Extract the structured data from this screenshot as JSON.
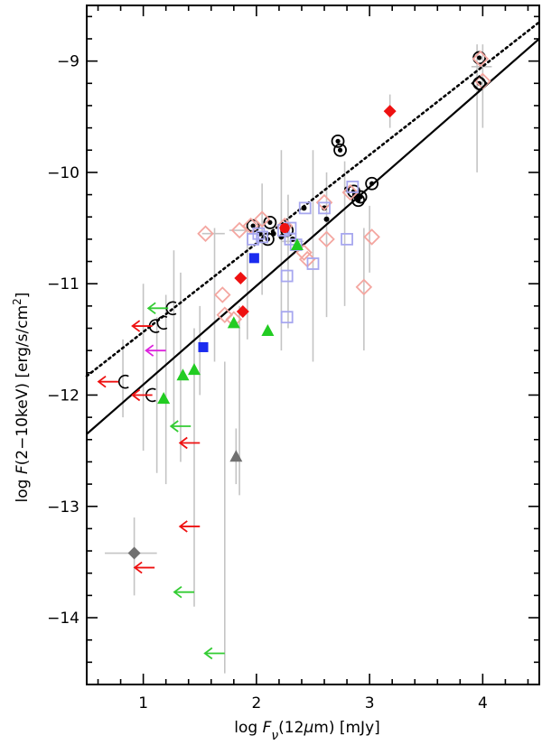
{
  "chart_data": {
    "type": "scatter",
    "xlabel": "log F_ν(12μm) [mJy]",
    "ylabel": "log F(2−10keV) [erg/s/cm²]",
    "xlabel_parts": {
      "prefix": "log ",
      "F": "F",
      "nu": "ν",
      "mid": "(12",
      "mu": "μ",
      "end": "m)  [mJy]"
    },
    "ylabel_parts": {
      "prefix": "log ",
      "F": "F",
      "mid": "(2−10keV)  [erg/s/cm",
      "sup": "2",
      "end": "]"
    },
    "xlim": [
      0.5,
      4.5
    ],
    "ylim": [
      -14.6,
      -8.5
    ],
    "x_ticks": [
      1,
      2,
      3,
      4
    ],
    "x_tick_labels": [
      "1",
      "2",
      "3",
      "4"
    ],
    "y_ticks": [
      -9,
      -10,
      -11,
      -12,
      -13,
      -14
    ],
    "y_tick_labels": [
      "−9",
      "−10",
      "−11",
      "−12",
      "−13",
      "−14"
    ],
    "fits": [
      {
        "name": "solid fit",
        "style": "solid",
        "points": [
          [
            0.5,
            -12.35
          ],
          [
            4.5,
            -8.8
          ]
        ]
      },
      {
        "name": "dotted fit",
        "style": "dotted",
        "points": [
          [
            0.5,
            -11.83
          ],
          [
            4.5,
            -8.65
          ]
        ]
      }
    ],
    "error_bars": [
      {
        "x": 1.0,
        "ylo": -12.5,
        "yhi": -11.0
      },
      {
        "x": 0.82,
        "ylo": -12.2,
        "yhi": -11.5
      },
      {
        "x": 1.12,
        "ylo": -12.7,
        "yhi": -11.3
      },
      {
        "x": 1.2,
        "ylo": -12.8,
        "yhi": -11.1
      },
      {
        "x": 1.27,
        "ylo": -12.3,
        "yhi": -10.7
      },
      {
        "x": 1.33,
        "ylo": -12.6,
        "yhi": -10.9
      },
      {
        "x": 1.45,
        "ylo": -13.9,
        "yhi": -11.4
      },
      {
        "x": 1.5,
        "ylo": -12.0,
        "yhi": -11.2
      },
      {
        "x": 1.63,
        "ylo": -11.7,
        "yhi": -10.5
      },
      {
        "x": 1.72,
        "ylo": -14.5,
        "yhi": -11.7
      },
      {
        "x": 1.85,
        "ylo": -12.9,
        "yhi": -11.2
      },
      {
        "x": 1.92,
        "ylo": -11.5,
        "yhi": -10.5
      },
      {
        "x": 2.05,
        "ylo": -11.1,
        "yhi": -10.1
      },
      {
        "x": 2.22,
        "ylo": -11.6,
        "yhi": -9.8
      },
      {
        "x": 2.28,
        "ylo": -11.4,
        "yhi": -10.2
      },
      {
        "x": 2.5,
        "ylo": -11.7,
        "yhi": -9.8
      },
      {
        "x": 2.62,
        "ylo": -11.3,
        "yhi": -10.0
      },
      {
        "x": 2.78,
        "ylo": -11.2,
        "yhi": -9.9
      },
      {
        "x": 2.95,
        "ylo": -11.6,
        "yhi": -10.5
      },
      {
        "x": 3.0,
        "ylo": -10.9,
        "yhi": -10.3
      },
      {
        "x": 3.95,
        "ylo": -10.0,
        "yhi": -8.85
      },
      {
        "x": 4.0,
        "ylo": -9.6,
        "yhi": -8.85
      },
      {
        "x": 3.18,
        "ylo": -9.6,
        "yhi": -9.3
      },
      {
        "x": 0.92,
        "ylo": -13.8,
        "yhi": -13.1
      },
      {
        "x": 1.82,
        "ylo": -12.8,
        "yhi": -12.3
      }
    ],
    "x_error_bars": [
      {
        "y": -13.42,
        "xlo": 0.66,
        "xhi": 1.12
      },
      {
        "y": -10.55,
        "xlo": 1.52,
        "xhi": 1.72
      },
      {
        "y": -10.52,
        "xlo": 1.76,
        "xhi": 1.96
      },
      {
        "y": -10.62,
        "xlo": 2.22,
        "xhi": 2.42
      },
      {
        "y": -9.05,
        "xlo": 3.9,
        "xhi": 4.08
      }
    ],
    "series": [
      {
        "name": "Open circle upper limits",
        "marker": "circle-open",
        "color": "#000000",
        "points": [
          [
            1.25,
            -11.22
          ],
          [
            1.17,
            -11.35
          ],
          [
            1.1,
            -11.38
          ],
          [
            0.83,
            -11.88
          ],
          [
            1.07,
            -12.0
          ]
        ]
      },
      {
        "name": "Circled dot",
        "marker": "circle-dot",
        "color": "#000000",
        "points": [
          [
            1.97,
            -10.48
          ],
          [
            2.12,
            -10.45
          ],
          [
            2.1,
            -10.6
          ],
          [
            2.72,
            -9.72
          ],
          [
            2.74,
            -9.8
          ],
          [
            2.86,
            -10.17
          ],
          [
            2.92,
            -10.22
          ],
          [
            3.02,
            -10.1
          ],
          [
            3.97,
            -8.97
          ],
          [
            3.97,
            -9.2
          ],
          [
            2.27,
            -10.52
          ],
          [
            2.9,
            -10.25
          ]
        ]
      },
      {
        "name": "Black dot",
        "marker": "dot",
        "color": "#000000",
        "points": [
          [
            2.03,
            -10.55
          ],
          [
            2.15,
            -10.55
          ],
          [
            2.22,
            -10.58
          ],
          [
            2.42,
            -10.32
          ],
          [
            2.6,
            -10.32
          ],
          [
            2.62,
            -10.42
          ],
          [
            2.8,
            -10.15
          ],
          [
            2.87,
            -10.2
          ],
          [
            2.32,
            -10.6
          ]
        ]
      },
      {
        "name": "Open pink diamond",
        "marker": "diamond-open",
        "color": "#f4a6a0",
        "points": [
          [
            1.55,
            -10.55
          ],
          [
            1.7,
            -11.1
          ],
          [
            1.72,
            -11.28
          ],
          [
            1.85,
            -10.52
          ],
          [
            1.95,
            -10.48
          ],
          [
            2.05,
            -10.42
          ],
          [
            2.25,
            -10.48
          ],
          [
            2.42,
            -10.72
          ],
          [
            2.45,
            -10.78
          ],
          [
            2.6,
            -10.27
          ],
          [
            2.62,
            -10.6
          ],
          [
            2.83,
            -10.18
          ],
          [
            2.95,
            -11.03
          ],
          [
            3.02,
            -10.58
          ],
          [
            3.98,
            -8.98
          ],
          [
            4.0,
            -9.18
          ],
          [
            1.8,
            -11.32
          ]
        ]
      },
      {
        "name": "Open blue square",
        "marker": "square-open",
        "color": "#a7a7ef",
        "points": [
          [
            1.97,
            -10.6
          ],
          [
            2.02,
            -10.55
          ],
          [
            2.05,
            -10.58
          ],
          [
            2.24,
            -10.52
          ],
          [
            2.3,
            -10.5
          ],
          [
            2.27,
            -10.93
          ],
          [
            2.27,
            -11.3
          ],
          [
            2.35,
            -10.65
          ],
          [
            2.43,
            -10.32
          ],
          [
            2.5,
            -10.82
          ],
          [
            2.6,
            -10.32
          ],
          [
            2.8,
            -10.6
          ],
          [
            2.85,
            -10.13
          ],
          [
            2.3,
            -10.6
          ]
        ]
      },
      {
        "name": "Red filled diamond",
        "marker": "diamond-filled",
        "color": "#ee1111",
        "points": [
          [
            1.86,
            -10.95
          ],
          [
            1.88,
            -11.25
          ],
          [
            3.18,
            -9.45
          ]
        ]
      },
      {
        "name": "Red filled circle",
        "marker": "circle-filled",
        "color": "#ee1111",
        "points": [
          [
            2.25,
            -10.5
          ]
        ]
      },
      {
        "name": "Blue filled square",
        "marker": "square-filled",
        "color": "#1a2bef",
        "points": [
          [
            1.98,
            -10.77
          ],
          [
            1.53,
            -11.57
          ]
        ]
      },
      {
        "name": "Green filled triangle",
        "marker": "triangle-filled",
        "color": "#22cc22",
        "points": [
          [
            1.35,
            -11.82
          ],
          [
            1.45,
            -11.77
          ],
          [
            1.8,
            -11.35
          ],
          [
            2.1,
            -11.42
          ],
          [
            2.36,
            -10.65
          ],
          [
            1.18,
            -12.03
          ]
        ]
      },
      {
        "name": "Gray filled triangle",
        "marker": "triangle-filled",
        "color": "#707070",
        "points": [
          [
            1.82,
            -12.55
          ]
        ]
      },
      {
        "name": "Gray filled diamond",
        "marker": "diamond-filled",
        "color": "#707070",
        "points": [
          [
            0.92,
            -13.42
          ]
        ]
      },
      {
        "name": "Open black diamond",
        "marker": "diamond-open",
        "color": "#000000",
        "points": [
          [
            3.97,
            -9.2
          ]
        ]
      },
      {
        "name": "Red upper-limit arrows",
        "marker": "arrow-left",
        "color": "#ee1111",
        "points": [
          [
            1.08,
            -11.38
          ],
          [
            0.78,
            -11.88
          ],
          [
            1.08,
            -12.0
          ],
          [
            1.5,
            -12.43
          ],
          [
            1.5,
            -13.18
          ],
          [
            1.1,
            -13.55
          ]
        ]
      },
      {
        "name": "Green upper-limit arrows",
        "marker": "arrow-left",
        "color": "#33cc33",
        "points": [
          [
            1.22,
            -11.22
          ],
          [
            1.42,
            -12.28
          ],
          [
            1.45,
            -13.77
          ],
          [
            1.72,
            -14.32
          ]
        ]
      },
      {
        "name": "Magenta upper-limit arrow",
        "marker": "arrow-left",
        "color": "#dd22dd",
        "points": [
          [
            1.2,
            -11.6
          ]
        ]
      }
    ]
  }
}
